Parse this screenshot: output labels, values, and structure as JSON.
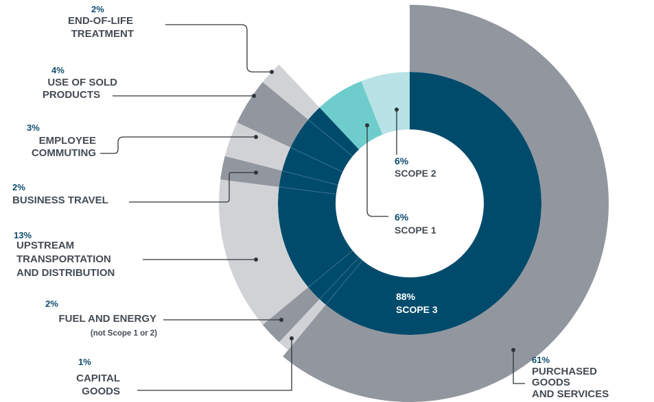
{
  "chart_data": {
    "type": "pie",
    "title": "",
    "inner_ring": [
      {
        "name": "SCOPE 2",
        "value": 6,
        "label": "6%",
        "color": "#b8e2e5"
      },
      {
        "name": "SCOPE 1",
        "value": 6,
        "label": "6%",
        "color": "#6ecdcc"
      },
      {
        "name": "SCOPE 3",
        "value": 88,
        "label": "88%",
        "color": "#004b6c"
      }
    ],
    "outer_ring": [
      {
        "name": "PURCHASED GOODS AND SERVICES",
        "lines": [
          "PURCHASED",
          "GOODS",
          "AND SERVICES"
        ],
        "value": 61,
        "label": "61%",
        "color": "#92969e"
      },
      {
        "name": "CAPITAL GOODS",
        "lines": [
          "CAPITAL",
          "GOODS"
        ],
        "value": 1,
        "label": "1%",
        "color": "#d0d2d6"
      },
      {
        "name": "FUEL AND ENERGY",
        "lines": [
          "FUEL AND ENERGY"
        ],
        "note": "(not Scope 1 or 2)",
        "value": 2,
        "label": "2%",
        "color": "#92969e"
      },
      {
        "name": "UPSTREAM TRANSPORTATION AND DISTRIBUTION",
        "lines": [
          "UPSTREAM",
          "TRANSPORTATION",
          "AND DISTRIBUTION"
        ],
        "value": 13,
        "label": "13%",
        "color": "#d0d2d6"
      },
      {
        "name": "BUSINESS TRAVEL",
        "lines": [
          "BUSINESS TRAVEL"
        ],
        "value": 2,
        "label": "2%",
        "color": "#92969e"
      },
      {
        "name": "EMPLOYEE COMMUTING",
        "lines": [
          "EMPLOYEE",
          "COMMUTING"
        ],
        "value": 3,
        "label": "3%",
        "color": "#d0d2d6"
      },
      {
        "name": "USE OF SOLD PRODUCTS",
        "lines": [
          "USE OF SOLD",
          "PRODUCTS"
        ],
        "value": 4,
        "label": "4%",
        "color": "#92969e"
      },
      {
        "name": "END-OF-LIFE TREATMENT",
        "lines": [
          "END-OF-LIFE",
          "TREATMENT"
        ],
        "value": 2,
        "label": "2%",
        "color": "#d0d2d6"
      }
    ],
    "colors": {
      "label_text": "#444b52",
      "percent_text": "#0e4c6c",
      "inner_label_text": "#ffffff",
      "leader": "#2e3439",
      "inner_divider": "#4a7b93"
    }
  }
}
